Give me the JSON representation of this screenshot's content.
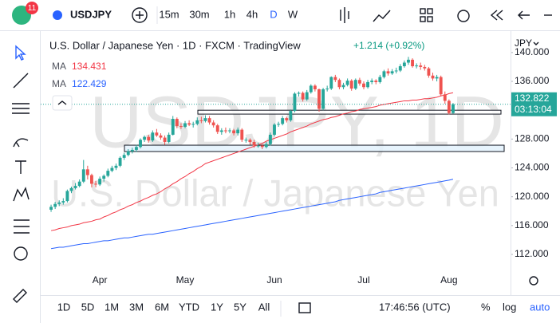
{
  "toolbar": {
    "badge": "11",
    "symbol": "USDJPY",
    "intervals": [
      "15m",
      "30m",
      "1h",
      "4h",
      "D",
      "W"
    ]
  },
  "bottom_bar": {
    "ranges": [
      "1D",
      "5D",
      "1M",
      "3M",
      "6M",
      "YTD",
      "1Y",
      "5Y",
      "All"
    ],
    "clock": "17:46:56 (UTC)",
    "options": [
      "%",
      "log",
      "auto"
    ]
  },
  "chart_data": {
    "type": "candlestick",
    "title": "U.S. Dollar / Japanese Yen · 1D · FXCM · TradingView",
    "change": "+1.214 (+0.92%)",
    "currency": "JPY",
    "countdown": "03:13:04",
    "watermark": [
      "USDJPY, 1D",
      "U.S. Dollar / Japanese Yen"
    ],
    "up_color": "#26a69a",
    "down_color": "#ef5350",
    "categories": [
      null,
      null,
      null,
      null,
      null,
      null,
      null,
      null,
      null,
      null,
      null,
      null,
      "Apr",
      null,
      null,
      null,
      null,
      null,
      null,
      null,
      null,
      null,
      null,
      null,
      null,
      null,
      null,
      null,
      null,
      null,
      null,
      null,
      null,
      "May",
      null,
      null,
      null,
      null,
      null,
      null,
      null,
      null,
      null,
      null,
      null,
      null,
      null,
      null,
      null,
      null,
      null,
      null,
      null,
      null,
      null,
      "Jun",
      null,
      null,
      null,
      null,
      null,
      null,
      null,
      null,
      null,
      null,
      null,
      null,
      null,
      null,
      null,
      null,
      null,
      null,
      null,
      null,
      null,
      "Jul",
      null,
      null,
      null,
      null,
      null,
      null,
      null,
      null,
      null,
      null,
      null,
      null,
      null,
      null,
      null,
      null,
      null,
      null,
      null,
      null,
      "Aug",
      null
    ],
    "candles": [
      [
        118.2,
        118.9,
        117.9,
        118.6
      ],
      [
        118.6,
        119.3,
        118.3,
        119.0
      ],
      [
        119.0,
        119.5,
        118.7,
        119.2
      ],
      [
        119.2,
        119.8,
        118.9,
        119.4
      ],
      [
        119.4,
        121.0,
        119.2,
        120.8
      ],
      [
        120.8,
        121.4,
        120.5,
        121.2
      ],
      [
        121.2,
        121.9,
        121.0,
        121.5
      ],
      [
        121.5,
        122.4,
        121.3,
        122.1
      ],
      [
        122.1,
        125.1,
        121.9,
        123.8
      ],
      [
        123.8,
        124.3,
        122.4,
        123.0
      ],
      [
        123.0,
        123.2,
        121.3,
        121.8
      ],
      [
        121.8,
        122.2,
        121.3,
        121.7
      ],
      [
        121.7,
        122.8,
        121.5,
        122.5
      ],
      [
        122.5,
        123.1,
        122.1,
        122.9
      ],
      [
        122.9,
        123.9,
        122.7,
        123.6
      ],
      [
        123.6,
        124.3,
        123.4,
        124.0
      ],
      [
        124.0,
        124.6,
        123.7,
        124.3
      ],
      [
        124.3,
        125.6,
        124.1,
        125.4
      ],
      [
        125.4,
        126.1,
        125.1,
        125.8
      ],
      [
        125.8,
        126.6,
        125.6,
        126.3
      ],
      [
        126.3,
        126.8,
        126.0,
        126.5
      ],
      [
        126.5,
        127.2,
        126.2,
        126.9
      ],
      [
        126.9,
        128.1,
        126.7,
        127.9
      ],
      [
        127.9,
        128.5,
        127.6,
        128.3
      ],
      [
        128.3,
        128.6,
        127.5,
        127.8
      ],
      [
        127.8,
        129.2,
        127.6,
        128.9
      ],
      [
        128.9,
        129.4,
        128.3,
        128.5
      ],
      [
        128.5,
        128.8,
        127.9,
        128.2
      ],
      [
        128.2,
        128.5,
        127.2,
        127.6
      ],
      [
        127.6,
        128.9,
        127.4,
        128.6
      ],
      [
        128.6,
        131.2,
        128.5,
        130.8
      ],
      [
        130.8,
        131.0,
        129.5,
        129.8
      ],
      [
        129.8,
        130.2,
        129.4,
        129.7
      ],
      [
        129.7,
        130.5,
        129.5,
        130.2
      ],
      [
        130.2,
        130.6,
        129.8,
        130.0
      ],
      [
        130.0,
        130.4,
        129.6,
        130.1
      ],
      [
        130.1,
        131.0,
        129.9,
        130.6
      ],
      [
        130.6,
        131.1,
        130.2,
        130.5
      ],
      [
        130.5,
        131.3,
        130.3,
        130.9
      ],
      [
        130.9,
        131.2,
        130.0,
        130.3
      ],
      [
        130.3,
        130.6,
        129.6,
        129.9
      ],
      [
        129.9,
        130.1,
        128.7,
        129.0
      ],
      [
        129.0,
        129.5,
        128.6,
        129.2
      ],
      [
        129.2,
        129.6,
        128.8,
        129.1
      ],
      [
        129.1,
        129.5,
        128.8,
        129.2
      ],
      [
        129.2,
        129.4,
        128.5,
        128.8
      ],
      [
        128.8,
        129.6,
        128.5,
        129.3
      ],
      [
        129.3,
        129.5,
        127.6,
        127.9
      ],
      [
        127.9,
        128.2,
        127.5,
        127.9
      ],
      [
        127.9,
        128.1,
        127.2,
        127.6
      ],
      [
        127.6,
        127.9,
        126.8,
        127.1
      ],
      [
        127.1,
        127.5,
        126.8,
        127.1
      ],
      [
        127.1,
        127.3,
        126.6,
        126.9
      ],
      [
        126.9,
        127.6,
        126.7,
        127.3
      ],
      [
        127.3,
        128.9,
        127.1,
        128.6
      ],
      [
        128.6,
        130.2,
        128.4,
        130.0
      ],
      [
        130.0,
        130.4,
        129.7,
        130.1
      ],
      [
        130.1,
        131.2,
        129.9,
        130.9
      ],
      [
        130.9,
        131.1,
        130.3,
        130.6
      ],
      [
        130.6,
        132.1,
        130.4,
        131.9
      ],
      [
        131.9,
        134.5,
        131.7,
        134.3
      ],
      [
        134.3,
        134.6,
        133.9,
        134.4
      ],
      [
        134.4,
        134.6,
        133.2,
        133.5
      ],
      [
        133.5,
        134.8,
        133.3,
        134.5
      ],
      [
        134.5,
        135.6,
        134.3,
        135.4
      ],
      [
        135.4,
        135.6,
        134.6,
        134.9
      ],
      [
        134.9,
        135.0,
        131.8,
        132.2
      ],
      [
        132.2,
        135.1,
        132.0,
        134.9
      ],
      [
        134.9,
        135.4,
        134.6,
        135.0
      ],
      [
        135.0,
        136.7,
        134.8,
        136.6
      ],
      [
        136.6,
        136.9,
        135.9,
        136.2
      ],
      [
        136.2,
        136.4,
        134.9,
        135.2
      ],
      [
        135.2,
        135.8,
        134.9,
        135.5
      ],
      [
        135.5,
        136.4,
        135.3,
        136.1
      ],
      [
        136.1,
        136.3,
        134.7,
        135.0
      ],
      [
        135.0,
        136.4,
        134.8,
        136.2
      ],
      [
        136.2,
        136.5,
        135.4,
        135.7
      ],
      [
        135.7,
        136.0,
        134.9,
        135.2
      ],
      [
        135.2,
        136.2,
        135.0,
        135.9
      ],
      [
        135.9,
        136.4,
        135.6,
        136.1
      ],
      [
        136.1,
        136.3,
        135.6,
        135.9
      ],
      [
        135.9,
        136.9,
        135.7,
        136.6
      ],
      [
        136.6,
        137.6,
        136.4,
        137.4
      ],
      [
        137.4,
        137.8,
        136.8,
        137.1
      ],
      [
        137.1,
        137.7,
        136.9,
        137.4
      ],
      [
        137.4,
        137.9,
        137.1,
        137.5
      ],
      [
        137.5,
        138.4,
        137.3,
        138.1
      ],
      [
        138.1,
        138.9,
        137.9,
        138.6
      ],
      [
        138.6,
        139.4,
        138.3,
        139.0
      ],
      [
        139.0,
        139.2,
        137.9,
        138.1
      ],
      [
        138.1,
        138.5,
        137.8,
        138.2
      ],
      [
        138.2,
        138.6,
        137.6,
        138.0
      ],
      [
        138.0,
        138.3,
        137.5,
        137.8
      ],
      [
        137.8,
        138.0,
        136.5,
        136.8
      ],
      [
        136.8,
        137.2,
        136.1,
        136.4
      ],
      [
        136.4,
        136.9,
        136.0,
        136.6
      ],
      [
        136.6,
        136.8,
        133.9,
        134.2
      ],
      [
        134.2,
        134.6,
        132.9,
        133.3
      ],
      [
        133.3,
        133.5,
        131.4,
        131.608
      ],
      [
        131.608,
        133.0,
        131.5,
        132.822
      ]
    ],
    "lines": [
      {
        "name": "MA",
        "color": "#f23645",
        "values": [
          115.3,
          115.4,
          115.6,
          115.7,
          115.8,
          116.0,
          116.1,
          116.2,
          116.4,
          116.5,
          116.6,
          116.8,
          116.9,
          117.2,
          117.4,
          117.7,
          117.9,
          118.2,
          118.4,
          118.7,
          118.9,
          119.2,
          119.4,
          119.7,
          119.9,
          120.2,
          120.4,
          120.7,
          121.1,
          121.4,
          121.8,
          122.1,
          122.5,
          122.8,
          123.2,
          123.5,
          123.9,
          124.2,
          124.6,
          124.8,
          125.0,
          125.2,
          125.4,
          125.6,
          125.8,
          126.0,
          126.2,
          126.4,
          126.6,
          126.8,
          127.0,
          127.2,
          127.4,
          127.7,
          127.9,
          128.1,
          128.3,
          128.5,
          128.7,
          129.0,
          129.2,
          129.4,
          129.6,
          129.8,
          130.1,
          130.3,
          130.5,
          130.7,
          130.8,
          131.0,
          131.1,
          131.3,
          131.5,
          131.6,
          131.8,
          131.9,
          132.1,
          132.2,
          132.3,
          132.4,
          132.5,
          132.7,
          132.8,
          132.9,
          133.0,
          133.1,
          133.2,
          133.3,
          133.3,
          133.4,
          133.4,
          133.5,
          133.6,
          133.6,
          133.7,
          133.8,
          134.0,
          134.1,
          134.3,
          134.431
        ]
      },
      {
        "name": "MA",
        "color": "#2962ff",
        "values": [
          112.8,
          112.9,
          113.0,
          113.0,
          113.1,
          113.2,
          113.3,
          113.4,
          113.5,
          113.5,
          113.6,
          113.7,
          113.8,
          113.9,
          113.9,
          114.0,
          114.1,
          114.2,
          114.3,
          114.3,
          114.4,
          114.5,
          114.6,
          114.7,
          114.8,
          114.8,
          114.9,
          115.0,
          115.1,
          115.2,
          115.3,
          115.4,
          115.5,
          115.6,
          115.7,
          115.8,
          115.9,
          116.0,
          116.1,
          116.2,
          116.3,
          116.4,
          116.5,
          116.6,
          116.7,
          116.8,
          116.9,
          117.0,
          117.1,
          117.2,
          117.3,
          117.4,
          117.5,
          117.6,
          117.7,
          117.8,
          117.9,
          118.0,
          118.1,
          118.2,
          118.3,
          118.4,
          118.5,
          118.6,
          118.7,
          118.8,
          118.9,
          119.0,
          119.1,
          119.2,
          119.3,
          119.5,
          119.6,
          119.7,
          119.8,
          119.9,
          120.0,
          120.1,
          120.2,
          120.3,
          120.4,
          120.6,
          120.7,
          120.8,
          120.9,
          121.0,
          121.1,
          121.2,
          121.3,
          121.4,
          121.5,
          121.6,
          121.7,
          121.8,
          121.9,
          122.0,
          122.1,
          122.2,
          122.3,
          122.429
        ]
      }
    ],
    "zones": [
      {
        "top": 132.0,
        "bottom": 131.46,
        "color": "#ffffff"
      },
      {
        "top": 127.15,
        "bottom": 126.27,
        "color": "#e3f2fd"
      }
    ],
    "ylim": [
      109.68,
      142.86
    ],
    "yticks": [
      {
        "value": 112,
        "label": "112.000"
      },
      {
        "value": 116,
        "label": "116.000"
      },
      {
        "value": 120,
        "label": "120.000"
      },
      {
        "value": 124,
        "label": "124.000"
      },
      {
        "value": 128,
        "label": "128.000"
      },
      {
        "value": 136,
        "label": "136.000"
      },
      {
        "value": 140,
        "label": "140.000"
      }
    ],
    "grid": false
  }
}
